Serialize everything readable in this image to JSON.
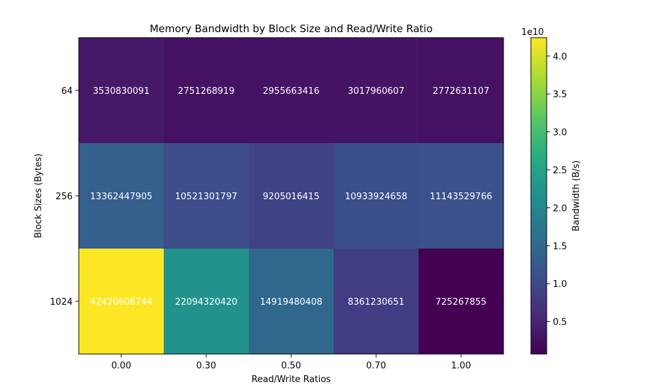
{
  "chart_data": {
    "type": "heatmap",
    "title": "Memory Bandwidth by Block Size and Read/Write Ratio",
    "xlabel": "Read/Write Ratios",
    "ylabel": "Block Sizes (Bytes)",
    "x_categories": [
      "0.00",
      "0.30",
      "0.50",
      "0.70",
      "1.00"
    ],
    "y_categories": [
      "64",
      "256",
      "1024"
    ],
    "values": [
      [
        3530830091,
        2751268919,
        2955663416,
        3017960607,
        2772631107
      ],
      [
        13362447905,
        10521301797,
        9205016415,
        10933924658,
        11143529766
      ],
      [
        42420608744,
        22094320420,
        14919480408,
        8361230651,
        725267855
      ]
    ],
    "colormap": "viridis",
    "colorbar": {
      "label": "Bandwidth (B/s)",
      "exponent_label": "1e10",
      "ticks": [
        0.5,
        1.0,
        1.5,
        2.0,
        2.5,
        3.0,
        3.5,
        4.0
      ],
      "tick_labels": [
        "0.5",
        "1.0",
        "1.5",
        "2.0",
        "2.5",
        "3.0",
        "3.5",
        "4.0"
      ],
      "scale": 10000000000,
      "range": [
        725267855,
        42420608744
      ]
    },
    "grid": false,
    "legend": "none"
  }
}
